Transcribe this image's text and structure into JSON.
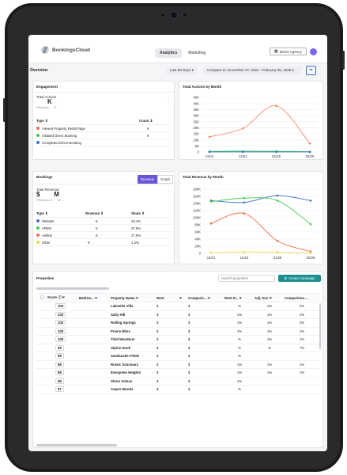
{
  "app": {
    "logo_text": "BookingsCloud"
  },
  "nav": {
    "tabs": [
      "Analytics",
      "Marketing"
    ],
    "active": 0
  },
  "header": {
    "demo_agency_label": "Demo Agency"
  },
  "overview": {
    "title": "Overview",
    "range_label": "Last 90 Days ▾",
    "compare_label": "Compare to: November 07, 2024 - February 05, 2025 ▾"
  },
  "engagement": {
    "title": "Engagement",
    "total_label": "Total Actions",
    "total_value": "K",
    "previous_label": "Previous",
    "previous_value": "K",
    "dash": "-",
    "col_type": "Type ⇕",
    "col_count": "Count ⇕",
    "rows": [
      {
        "label": "Viewed Property Detail Page",
        "count": "K",
        "color": "#f26b4f"
      },
      {
        "label": "Initiated Direct Booking",
        "count": "K",
        "color": "#3fcf4a"
      },
      {
        "label": "Completed Direct Booking",
        "count": "",
        "color": "#3b6fd1"
      }
    ]
  },
  "actions_chart": {
    "title": "Total Actions by Month",
    "chart_data": {
      "type": "line",
      "categories": [
        "11/24",
        "12/24",
        "01/25",
        "02/25"
      ],
      "y_ticks": [
        "0",
        "5K",
        "10K",
        "15K",
        "20K",
        "25K",
        "30K",
        "35K",
        "40K",
        "45K"
      ],
      "ylim": [
        0,
        45000
      ],
      "series": [
        {
          "values": [
            12500,
            19500,
            38000,
            7000
          ],
          "color": "#f58a6e"
        },
        {
          "values": [
            500,
            700,
            600,
            300
          ],
          "color": "#3fcf4a"
        },
        {
          "values": [
            50,
            80,
            60,
            30
          ],
          "color": "#3b6fd1"
        }
      ]
    }
  },
  "bookings": {
    "title": "Bookings",
    "toggle": [
      "Revenue",
      "Count"
    ],
    "total_label": "Total Revenue",
    "total_value": "$        M",
    "previous_label": "Previous: $",
    "previous_value": "M",
    "dash": "-",
    "col_type": "Type ⇕",
    "col_revenue": "Revenue ⇕",
    "col_share": "Share ⇕",
    "rows": [
      {
        "label": "Website",
        "revenue": "K",
        "share": "43.4%",
        "color": "#3b6fd1"
      },
      {
        "label": "VRBO",
        "revenue": "K",
        "share": "37.8%",
        "color": "#3fcf4a"
      },
      {
        "label": "AirBnb",
        "revenue": "K",
        "share": "17.5%",
        "color": "#f26b4f"
      },
      {
        "label": "Other",
        "revenue": "K",
        "share": "1.2%",
        "color": "#f2d64a"
      }
    ]
  },
  "revenue_chart": {
    "title": "Total Revenue by Month",
    "chart_data": {
      "type": "line",
      "categories": [
        "11/24",
        "12/24",
        "01/25",
        "02/25"
      ],
      "y_ticks": [
        "0",
        "20K",
        "40K",
        "60K",
        "80K",
        "100K",
        "120K",
        "140K",
        "160K",
        "180K"
      ],
      "ylim": [
        0,
        180000
      ],
      "series": [
        {
          "values": [
            148000,
            143000,
            162000,
            148000
          ],
          "color": "#3b6fd1"
        },
        {
          "values": [
            145000,
            155000,
            148000,
            82000
          ],
          "color": "#3fcf4a"
        },
        {
          "values": [
            84000,
            112000,
            35000,
            5000
          ],
          "color": "#f26b4f"
        },
        {
          "values": [
            2000,
            4000,
            3000,
            1000
          ],
          "color": "#f2d64a"
        }
      ]
    }
  },
  "properties": {
    "title": "Properties",
    "search_placeholder": "Search properties",
    "campaign_label": "Create Campaign",
    "columns": [
      "Score",
      "Bedroo...",
      "Property Name",
      "Rent",
      "Comparis...",
      "Rent D...",
      "Adj. Occ",
      "Comparison ..."
    ],
    "rows": [
      {
        "score": "100",
        "name": "Lakeside Villa",
        "rent": "$",
        "comp": "$",
        "rd": "%",
        "occ": "1%",
        "co": "3%"
      },
      {
        "score": "100",
        "name": "Salty Hill",
        "rent": "$",
        "comp": "$",
        "rd": "1%",
        "occ": "1%",
        "co": "1%"
      },
      {
        "score": "100",
        "name": "Rolling Springs",
        "rent": "$",
        "comp": "$",
        "rd": "1%",
        "occ": "1%",
        "co": "3%"
      },
      {
        "score": "100",
        "name": "Prairie Bliss",
        "rent": "$",
        "comp": "$",
        "rd": "1%",
        "occ": "1%",
        "co": "1%"
      },
      {
        "score": "100",
        "name": "Tidal Wanderer",
        "rent": "$",
        "comp": "$",
        "rd": "%",
        "occ": "1%",
        "co": "1%"
      },
      {
        "score": "99",
        "name": "Alpine Nook",
        "rent": "$",
        "comp": "$",
        "rd": "%",
        "occ": "%",
        "co": "7%"
      },
      {
        "score": "99",
        "name": "Sandcastle Fields",
        "rent": "$",
        "comp": "$",
        "rd": "%",
        "occ": "",
        "co": ""
      },
      {
        "score": "98",
        "name": "Rustic Sanctuary",
        "rent": "$",
        "comp": "$",
        "rd": "1%",
        "occ": "1%",
        "co": "1%"
      },
      {
        "score": "98",
        "name": "Evergreen Heights",
        "rent": "$",
        "comp": "$",
        "rd": "1%",
        "occ": "1%",
        "co": "1%"
      },
      {
        "score": "98",
        "name": "Shore Solace",
        "rent": "$",
        "comp": "$",
        "rd": "1%",
        "occ": "",
        "co": ""
      },
      {
        "score": "97",
        "name": "Aspen Woods",
        "rent": "$",
        "comp": "$",
        "rd": "%",
        "occ": "",
        "co": ""
      }
    ]
  }
}
